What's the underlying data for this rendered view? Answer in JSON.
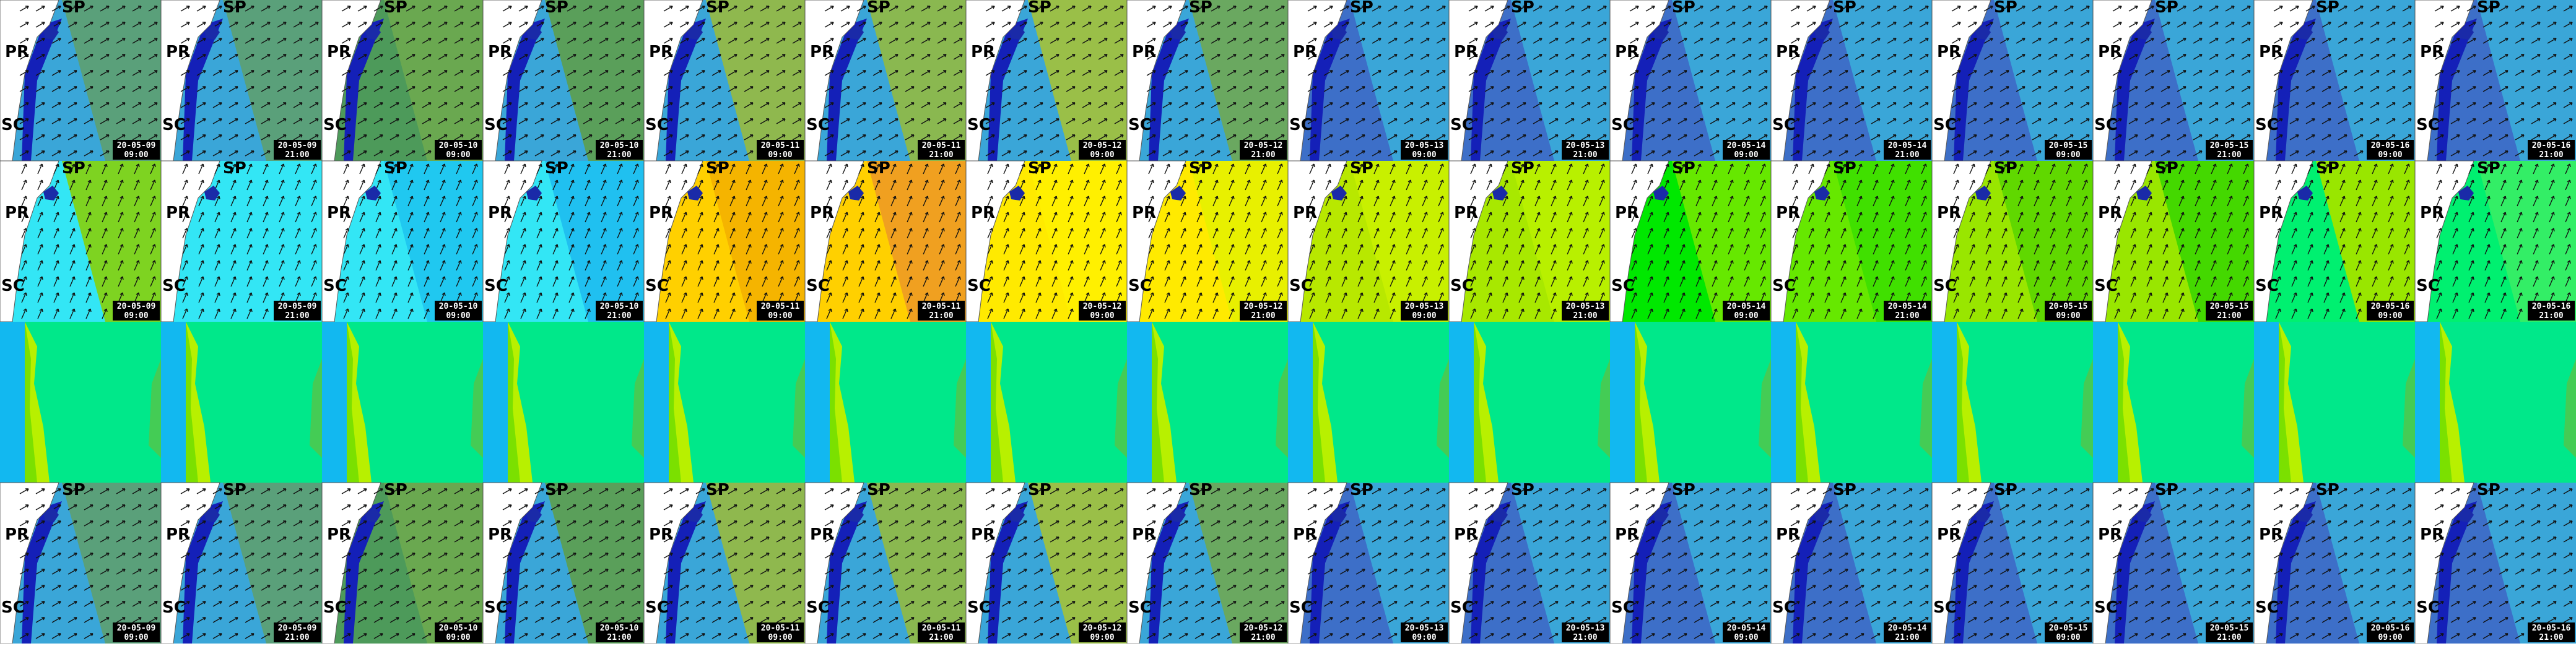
{
  "states": [
    "SP",
    "PR",
    "SC"
  ],
  "timestamps": [
    {
      "date": "20-05-09",
      "time": "09:00"
    },
    {
      "date": "20-05-09",
      "time": "21:00"
    },
    {
      "date": "20-05-10",
      "time": "09:00"
    },
    {
      "date": "20-05-10",
      "time": "21:00"
    },
    {
      "date": "20-05-11",
      "time": "09:00"
    },
    {
      "date": "20-05-11",
      "time": "21:00"
    },
    {
      "date": "20-05-12",
      "time": "09:00"
    },
    {
      "date": "20-05-12",
      "time": "21:00"
    },
    {
      "date": "20-05-13",
      "time": "09:00"
    },
    {
      "date": "20-05-13",
      "time": "21:00"
    },
    {
      "date": "20-05-14",
      "time": "09:00"
    },
    {
      "date": "20-05-14",
      "time": "21:00"
    },
    {
      "date": "20-05-15",
      "time": "09:00"
    },
    {
      "date": "20-05-15",
      "time": "21:00"
    },
    {
      "date": "20-05-16",
      "time": "09:00"
    },
    {
      "date": "20-05-16",
      "time": "21:00"
    }
  ]
}
